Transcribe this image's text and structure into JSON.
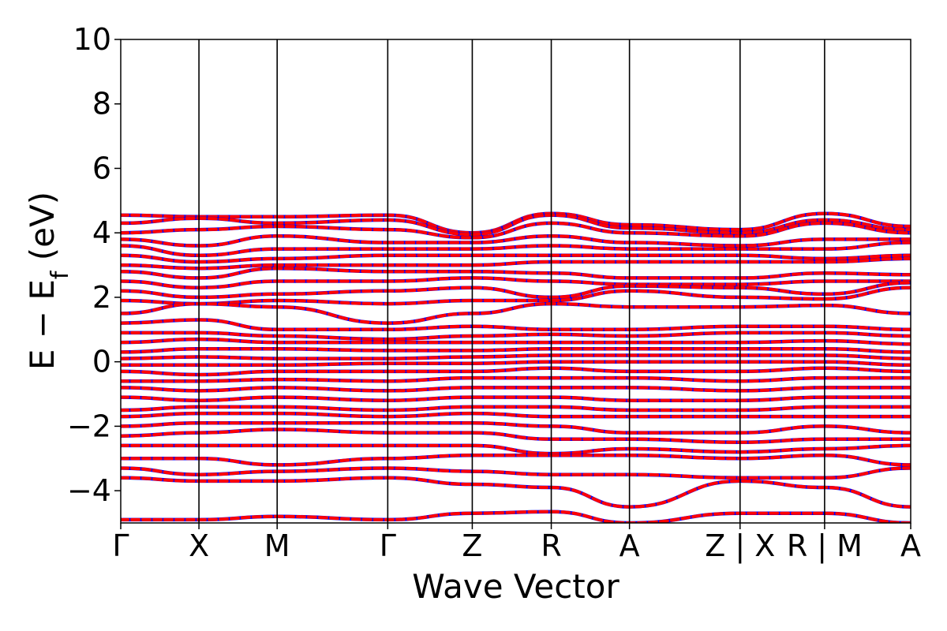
{
  "chart_data": {
    "type": "line",
    "xlabel": "Wave Vector",
    "ylabel": {
      "base": "E − E",
      "sub": "f",
      "unit": " (eV)"
    },
    "ylim": [
      -5,
      10
    ],
    "yticks": [
      -4,
      -2,
      0,
      2,
      4,
      6,
      8,
      10
    ],
    "ytick_labels": [
      "−4",
      "−2",
      "0",
      "2",
      "4",
      "6",
      "8",
      "10"
    ],
    "kpath_labels": [
      "Γ",
      "X",
      "M",
      "Γ",
      "Z",
      "R",
      "A",
      "Z | X",
      "R | M",
      "A"
    ],
    "kpath_positions": [
      0,
      0.99,
      1.98,
      3.38,
      4.45,
      5.45,
      6.44,
      7.84,
      8.91,
      10.0
    ],
    "grid": false,
    "series_styles": {
      "spin_up": {
        "color": "#0000ff",
        "style": "solid"
      },
      "spin_down": {
        "color": "#ff0000",
        "style": "dashed"
      }
    },
    "bands_sampled": [
      {
        "energies": [
          4.55,
          4.5,
          4.5,
          4.55,
          4.0,
          4.6,
          4.25,
          4.1,
          4.6,
          4.2
        ]
      },
      {
        "energies": [
          4.3,
          4.45,
          4.3,
          4.4,
          3.95,
          4.55,
          4.15,
          4.0,
          4.4,
          4.1
        ]
      },
      {
        "energies": [
          4.0,
          4.1,
          4.2,
          4.1,
          3.85,
          4.3,
          4.0,
          3.9,
          4.3,
          4.0
        ]
      },
      {
        "energies": [
          3.8,
          3.6,
          3.9,
          3.7,
          3.7,
          3.9,
          3.7,
          3.6,
          3.8,
          3.8
        ]
      },
      {
        "energies": [
          3.6,
          3.3,
          3.5,
          3.5,
          3.5,
          3.6,
          3.5,
          3.5,
          3.5,
          3.7
        ]
      },
      {
        "energies": [
          3.3,
          3.1,
          3.2,
          3.3,
          3.3,
          3.3,
          3.3,
          3.3,
          3.2,
          3.3
        ]
      },
      {
        "energies": [
          3.0,
          2.9,
          3.0,
          3.0,
          3.0,
          3.1,
          3.1,
          3.1,
          3.1,
          3.2
        ]
      },
      {
        "energies": [
          2.8,
          2.6,
          2.9,
          2.8,
          2.8,
          2.75,
          2.6,
          2.6,
          2.75,
          2.7
        ]
      },
      {
        "energies": [
          2.5,
          2.3,
          2.5,
          2.5,
          2.6,
          2.5,
          2.4,
          2.4,
          2.5,
          2.5
        ]
      },
      {
        "energies": [
          2.2,
          2.0,
          2.1,
          2.2,
          2.3,
          2.0,
          2.35,
          2.3,
          2.1,
          2.45
        ]
      },
      {
        "energies": [
          1.9,
          1.8,
          1.9,
          1.8,
          1.9,
          1.9,
          2.2,
          2.0,
          1.95,
          2.3
        ]
      },
      {
        "energies": [
          1.5,
          1.8,
          1.7,
          1.2,
          1.5,
          1.8,
          1.7,
          1.7,
          1.75,
          1.5
        ]
      },
      {
        "energies": [
          1.2,
          1.3,
          1.0,
          1.0,
          1.1,
          1.0,
          1.0,
          1.1,
          1.1,
          1.0
        ]
      },
      {
        "energies": [
          0.9,
          0.9,
          0.8,
          0.7,
          0.8,
          0.85,
          0.8,
          0.9,
          0.9,
          0.8
        ]
      },
      {
        "energies": [
          0.6,
          0.7,
          0.6,
          0.6,
          0.6,
          0.6,
          0.6,
          0.6,
          0.65,
          0.55
        ]
      },
      {
        "energies": [
          0.3,
          0.4,
          0.4,
          0.35,
          0.35,
          0.4,
          0.4,
          0.4,
          0.4,
          0.3
        ]
      },
      {
        "energies": [
          0.1,
          0.15,
          0.1,
          0.1,
          0.15,
          0.2,
          0.2,
          0.2,
          0.2,
          0.1
        ]
      },
      {
        "energies": [
          -0.1,
          -0.1,
          -0.1,
          -0.05,
          -0.05,
          0.0,
          0.0,
          0.0,
          0.0,
          -0.1
        ]
      },
      {
        "energies": [
          -0.3,
          -0.4,
          -0.3,
          -0.3,
          -0.3,
          -0.2,
          -0.3,
          -0.3,
          -0.2,
          -0.3
        ]
      },
      {
        "energies": [
          -0.6,
          -0.6,
          -0.55,
          -0.6,
          -0.5,
          -0.5,
          -0.5,
          -0.6,
          -0.5,
          -0.5
        ]
      },
      {
        "energies": [
          -0.8,
          -0.9,
          -0.8,
          -0.9,
          -0.8,
          -0.8,
          -0.8,
          -0.9,
          -0.8,
          -0.8
        ]
      },
      {
        "energies": [
          -1.1,
          -1.2,
          -1.1,
          -1.2,
          -1.1,
          -1.1,
          -1.2,
          -1.2,
          -1.1,
          -1.1
        ]
      },
      {
        "energies": [
          -1.5,
          -1.4,
          -1.4,
          -1.5,
          -1.4,
          -1.4,
          -1.5,
          -1.5,
          -1.4,
          -1.4
        ]
      },
      {
        "energies": [
          -1.7,
          -1.6,
          -1.6,
          -1.7,
          -1.6,
          -1.7,
          -1.7,
          -1.7,
          -1.7,
          -1.7
        ]
      },
      {
        "energies": [
          -2.0,
          -1.9,
          -1.9,
          -1.9,
          -1.9,
          -2.0,
          -2.2,
          -2.2,
          -2.0,
          -2.2
        ]
      },
      {
        "energies": [
          -2.3,
          -2.2,
          -2.1,
          -2.2,
          -2.2,
          -2.4,
          -2.4,
          -2.5,
          -2.4,
          -2.4
        ]
      },
      {
        "energies": [
          -2.6,
          -2.6,
          -2.6,
          -2.6,
          -2.6,
          -2.85,
          -2.7,
          -2.8,
          -2.7,
          -2.6
        ]
      },
      {
        "energies": [
          -3.0,
          -3.0,
          -3.2,
          -3.0,
          -2.9,
          -2.9,
          -2.9,
          -3.0,
          -2.9,
          -3.2
        ]
      },
      {
        "energies": [
          -3.3,
          -3.5,
          -3.4,
          -3.3,
          -3.4,
          -3.5,
          -3.5,
          -3.6,
          -3.6,
          -3.3
        ]
      },
      {
        "energies": [
          -3.6,
          -3.7,
          -3.7,
          -3.6,
          -3.8,
          -3.9,
          -4.5,
          -3.7,
          -3.9,
          -4.5
        ]
      },
      {
        "energies": [
          -4.9,
          -4.9,
          -4.8,
          -4.9,
          -4.7,
          -4.65,
          -5.0,
          -4.7,
          -4.7,
          -5.0
        ]
      }
    ]
  }
}
